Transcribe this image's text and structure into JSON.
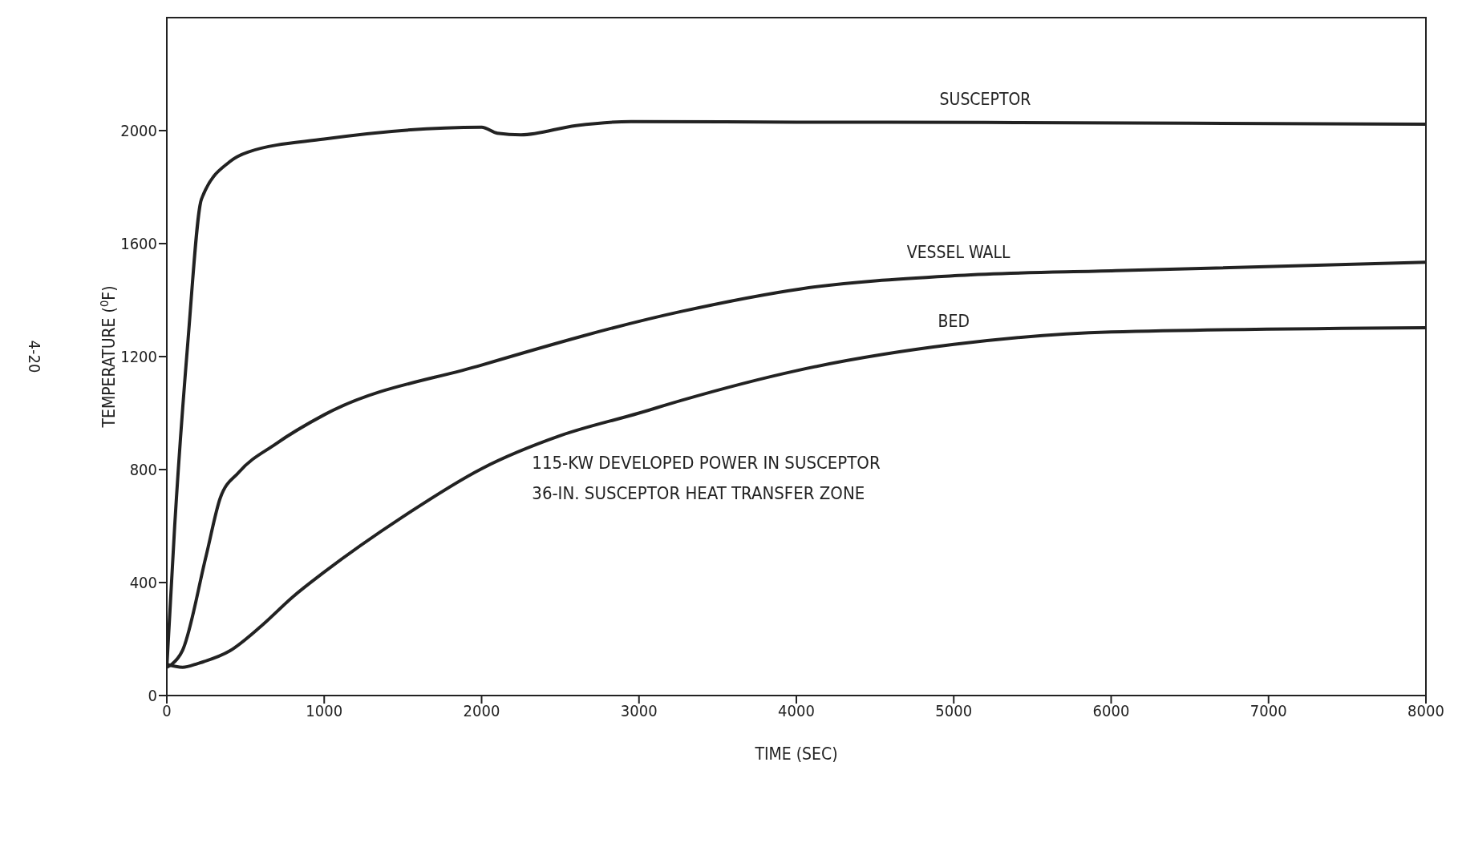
{
  "chart_data": {
    "type": "line",
    "xlabel": "TIME (SEC)",
    "ylabel": "TEMPERATURE ($^{0}$F)",
    "xlim": [
      0,
      8000
    ],
    "xticks": [
      0,
      1000,
      2000,
      3000,
      4000,
      5000,
      6000,
      7000,
      8000
    ],
    "ylim": [
      0,
      2400
    ],
    "yticks": [
      0,
      400,
      800,
      1200,
      1600,
      2000
    ],
    "marker": "none",
    "line_style": "solid",
    "annotations": [
      "115-KW DEVELOPED POWER IN SUSCEPTOR",
      "36-IN. SUSCEPTOR HEAT TRANSFER ZONE",
      "4-20"
    ],
    "series": [
      {
        "name": "SUSCEPTOR",
        "color": "#222222",
        "x": [
          0,
          50,
          135,
          220,
          400,
          515,
          1000,
          2000,
          2100,
          2250,
          2600,
          2950,
          4000,
          5200,
          6500,
          8000
        ],
        "values": [
          100,
          600,
          1260,
          1757,
          1890,
          1924,
          1970,
          2012,
          1991,
          1985,
          2018,
          2032,
          2030,
          2029,
          2026,
          2023
        ]
      },
      {
        "name": "VESSEL WALL",
        "color": "#222222",
        "x": [
          0,
          30,
          100,
          250,
          340,
          457,
          690,
          1000,
          2000,
          3270,
          4030,
          5030,
          6030,
          8000
        ],
        "values": [
          100,
          110,
          160,
          495,
          700,
          790,
          890,
          994,
          1170,
          1360,
          1440,
          1487,
          1504,
          1534
        ]
      },
      {
        "name": "BED",
        "color": "#222222",
        "x": [
          0,
          100,
          200,
          400,
          600,
          800,
          1000,
          1500,
          2000,
          2500,
          3000,
          3270,
          4000,
          5000,
          6000,
          8000
        ],
        "values": [
          110,
          100,
          114,
          158,
          246,
          349,
          437,
          633,
          803,
          920,
          1000,
          1045,
          1150,
          1243,
          1287,
          1302
        ]
      }
    ]
  }
}
